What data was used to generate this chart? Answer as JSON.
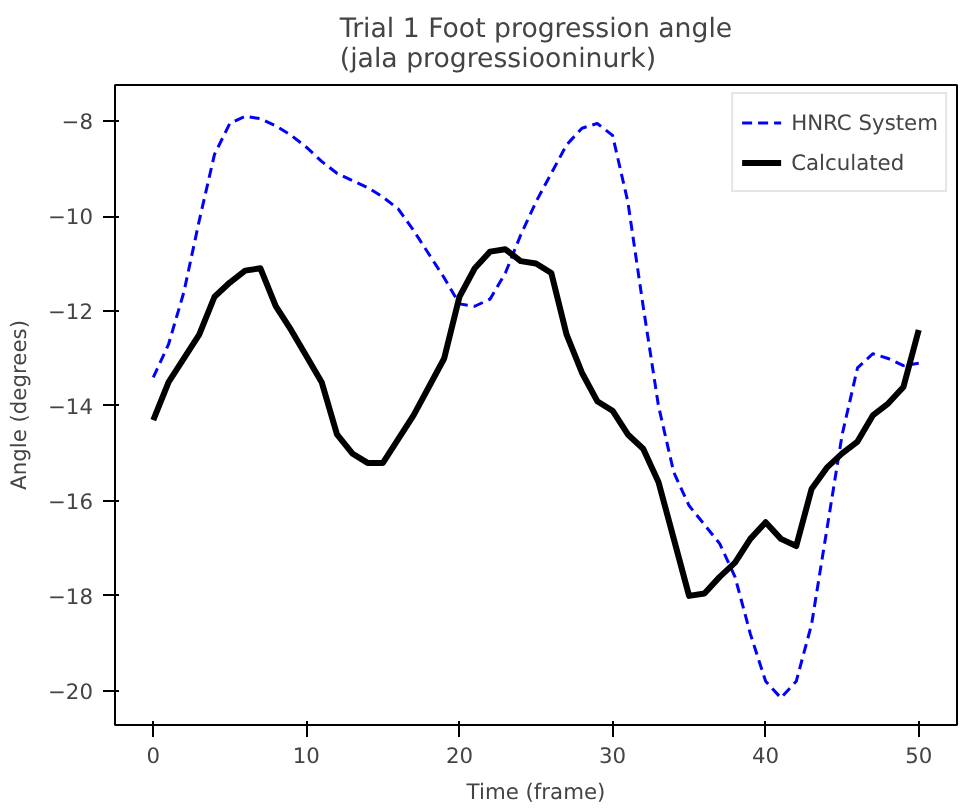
{
  "chart_data": {
    "type": "line",
    "title": "Trial 1 Foot progression angle\n(jala progressiooninurk)",
    "xlabel": "Time (frame)",
    "ylabel": "Angle (degrees)",
    "x": [
      0,
      1,
      2,
      3,
      4,
      5,
      6,
      7,
      8,
      9,
      10,
      11,
      12,
      13,
      14,
      15,
      16,
      17,
      18,
      19,
      20,
      21,
      22,
      23,
      24,
      25,
      26,
      27,
      28,
      29,
      30,
      31,
      32,
      33,
      34,
      35,
      36,
      37,
      38,
      39,
      40,
      41,
      42,
      43,
      44,
      45,
      46,
      47,
      48,
      49,
      50
    ],
    "series": [
      {
        "name": "HNRC System",
        "color": "#0000ff",
        "line_style": "dashed",
        "values": [
          -13.4,
          -12.7,
          -11.6,
          -10.1,
          -8.7,
          -8.05,
          -7.9,
          -7.95,
          -8.1,
          -8.3,
          -8.55,
          -8.85,
          -9.1,
          -9.25,
          -9.4,
          -9.6,
          -9.85,
          -10.3,
          -10.8,
          -11.3,
          -11.85,
          -11.9,
          -11.75,
          -11.2,
          -10.4,
          -9.7,
          -9.1,
          -8.5,
          -8.15,
          -8.05,
          -8.3,
          -9.7,
          -11.9,
          -14.0,
          -15.4,
          -16.1,
          -16.5,
          -16.9,
          -17.6,
          -18.8,
          -19.8,
          -20.15,
          -19.8,
          -18.6,
          -16.6,
          -14.6,
          -13.2,
          -12.9,
          -13.0,
          -13.15,
          -13.1
        ]
      },
      {
        "name": "Calculated",
        "color": "#000000",
        "line_style": "solid",
        "values": [
          -14.3,
          -13.5,
          -13.0,
          -12.5,
          -11.7,
          -11.4,
          -11.15,
          -11.1,
          -11.9,
          -12.4,
          -12.95,
          -13.5,
          -14.6,
          -15.0,
          -15.2,
          -15.2,
          -14.7,
          -14.2,
          -13.6,
          -13.0,
          -11.7,
          -11.1,
          -10.75,
          -10.7,
          -10.95,
          -11.0,
          -11.2,
          -12.5,
          -13.3,
          -13.9,
          -14.1,
          -14.6,
          -14.9,
          -15.6,
          -16.8,
          -18.0,
          -17.95,
          -17.6,
          -17.3,
          -16.8,
          -16.45,
          -16.8,
          -16.95,
          -15.75,
          -15.3,
          -15.0,
          -14.75,
          -14.2,
          -13.95,
          -13.6,
          -12.4
        ]
      }
    ],
    "xlim": [
      -2.5,
      52.5
    ],
    "xticks": [
      0,
      10,
      20,
      30,
      40,
      50
    ],
    "ylim": [
      -20.72,
      -7.24
    ],
    "yticks": [
      -20,
      -18,
      -16,
      -14,
      -12,
      -10,
      -8
    ],
    "grid": false,
    "legend": "top right",
    "marker": "none"
  }
}
